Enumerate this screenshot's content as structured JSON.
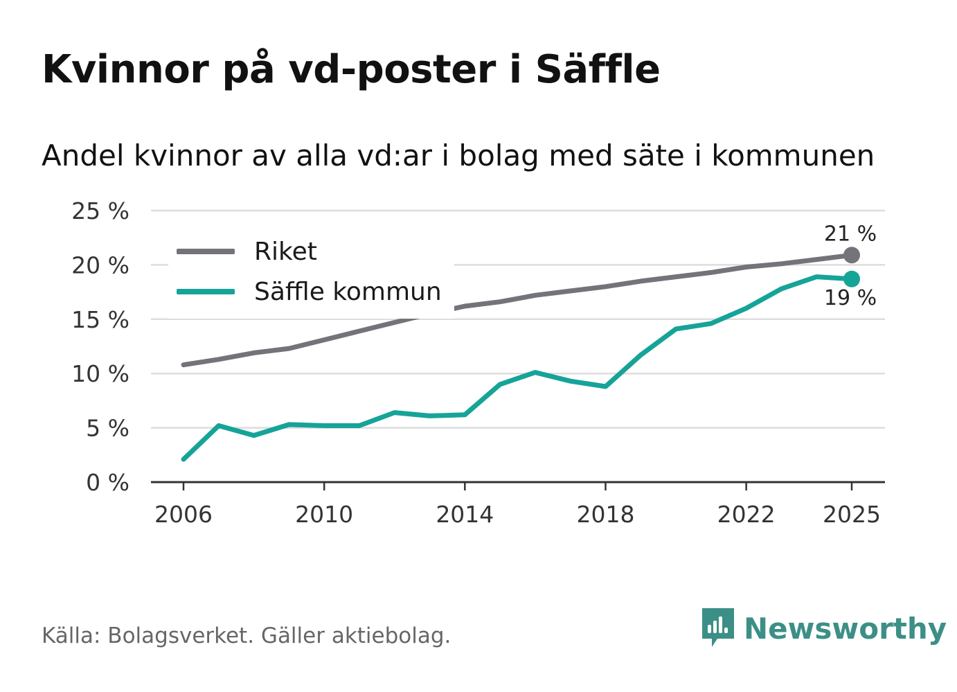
{
  "title": "Kvinnor på vd-poster i Säffle",
  "subtitle": "Andel kvinnor av alla vd:ar i bolag med säte i kommunen",
  "source": "Källa: Bolagsverket. Gäller aktiebolag.",
  "brand": {
    "name": "Newsworthy",
    "icon": "newsworthy-logo-icon",
    "color": "#3c8f86"
  },
  "colors": {
    "riket": "#75737a",
    "saffle": "#16a398",
    "grid": "#dddddd",
    "axis": "#333333"
  },
  "chart_data": {
    "type": "line",
    "title": "Kvinnor på vd-poster i Säffle",
    "xlabel": "",
    "ylabel": "",
    "ylim": [
      0,
      25
    ],
    "xlim": [
      2006,
      2025
    ],
    "x_ticks": [
      2006,
      2010,
      2014,
      2018,
      2022,
      2025
    ],
    "y_ticks": [
      0,
      5,
      10,
      15,
      20,
      25
    ],
    "y_tick_labels": [
      "0 %",
      "5 %",
      "10 %",
      "15 %",
      "20 %",
      "25 %"
    ],
    "legend_position": "top-left",
    "x": [
      2006,
      2007,
      2008,
      2009,
      2010,
      2011,
      2012,
      2013,
      2014,
      2015,
      2016,
      2017,
      2018,
      2019,
      2020,
      2021,
      2022,
      2023,
      2024,
      2025
    ],
    "series": [
      {
        "name": "Riket",
        "values": [
          10.8,
          11.3,
          11.9,
          12.3,
          13.1,
          13.9,
          14.7,
          15.5,
          16.2,
          16.6,
          17.2,
          17.6,
          18.0,
          18.5,
          18.9,
          19.3,
          19.8,
          20.1,
          20.5,
          20.9
        ],
        "end_label": "21 %"
      },
      {
        "name": "Säffle kommun",
        "values": [
          2.1,
          5.2,
          4.3,
          5.3,
          5.2,
          5.2,
          6.4,
          6.1,
          6.2,
          9.0,
          10.1,
          9.3,
          8.8,
          11.7,
          14.1,
          14.6,
          16.0,
          17.8,
          18.9,
          18.7
        ],
        "end_label": "19 %"
      }
    ]
  }
}
